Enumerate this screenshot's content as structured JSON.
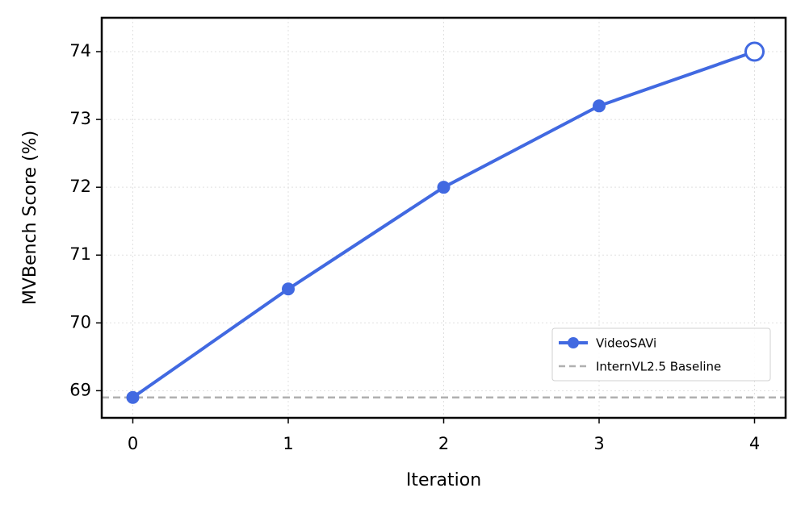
{
  "chart_data": {
    "type": "line",
    "x_label": "Iteration",
    "y_label": "MVBench Score (%)",
    "x": [
      0,
      1,
      2,
      3,
      4
    ],
    "series": [
      {
        "name": "VideoSAVi",
        "color": "#4169e1",
        "values": [
          68.9,
          70.5,
          72.0,
          73.2,
          74.0
        ]
      }
    ],
    "baseline": {
      "name": "InternVL2.5 Baseline",
      "value": 68.9,
      "color": "#b0b0b0"
    },
    "hollow_last_marker": true,
    "xlim": [
      -0.2,
      4.2
    ],
    "ylim": [
      68.6,
      74.5
    ],
    "xticks": [
      0,
      1,
      2,
      3,
      4
    ],
    "yticks": [
      69,
      70,
      71,
      72,
      73,
      74
    ],
    "grid": true,
    "legend_position": "lower right"
  }
}
